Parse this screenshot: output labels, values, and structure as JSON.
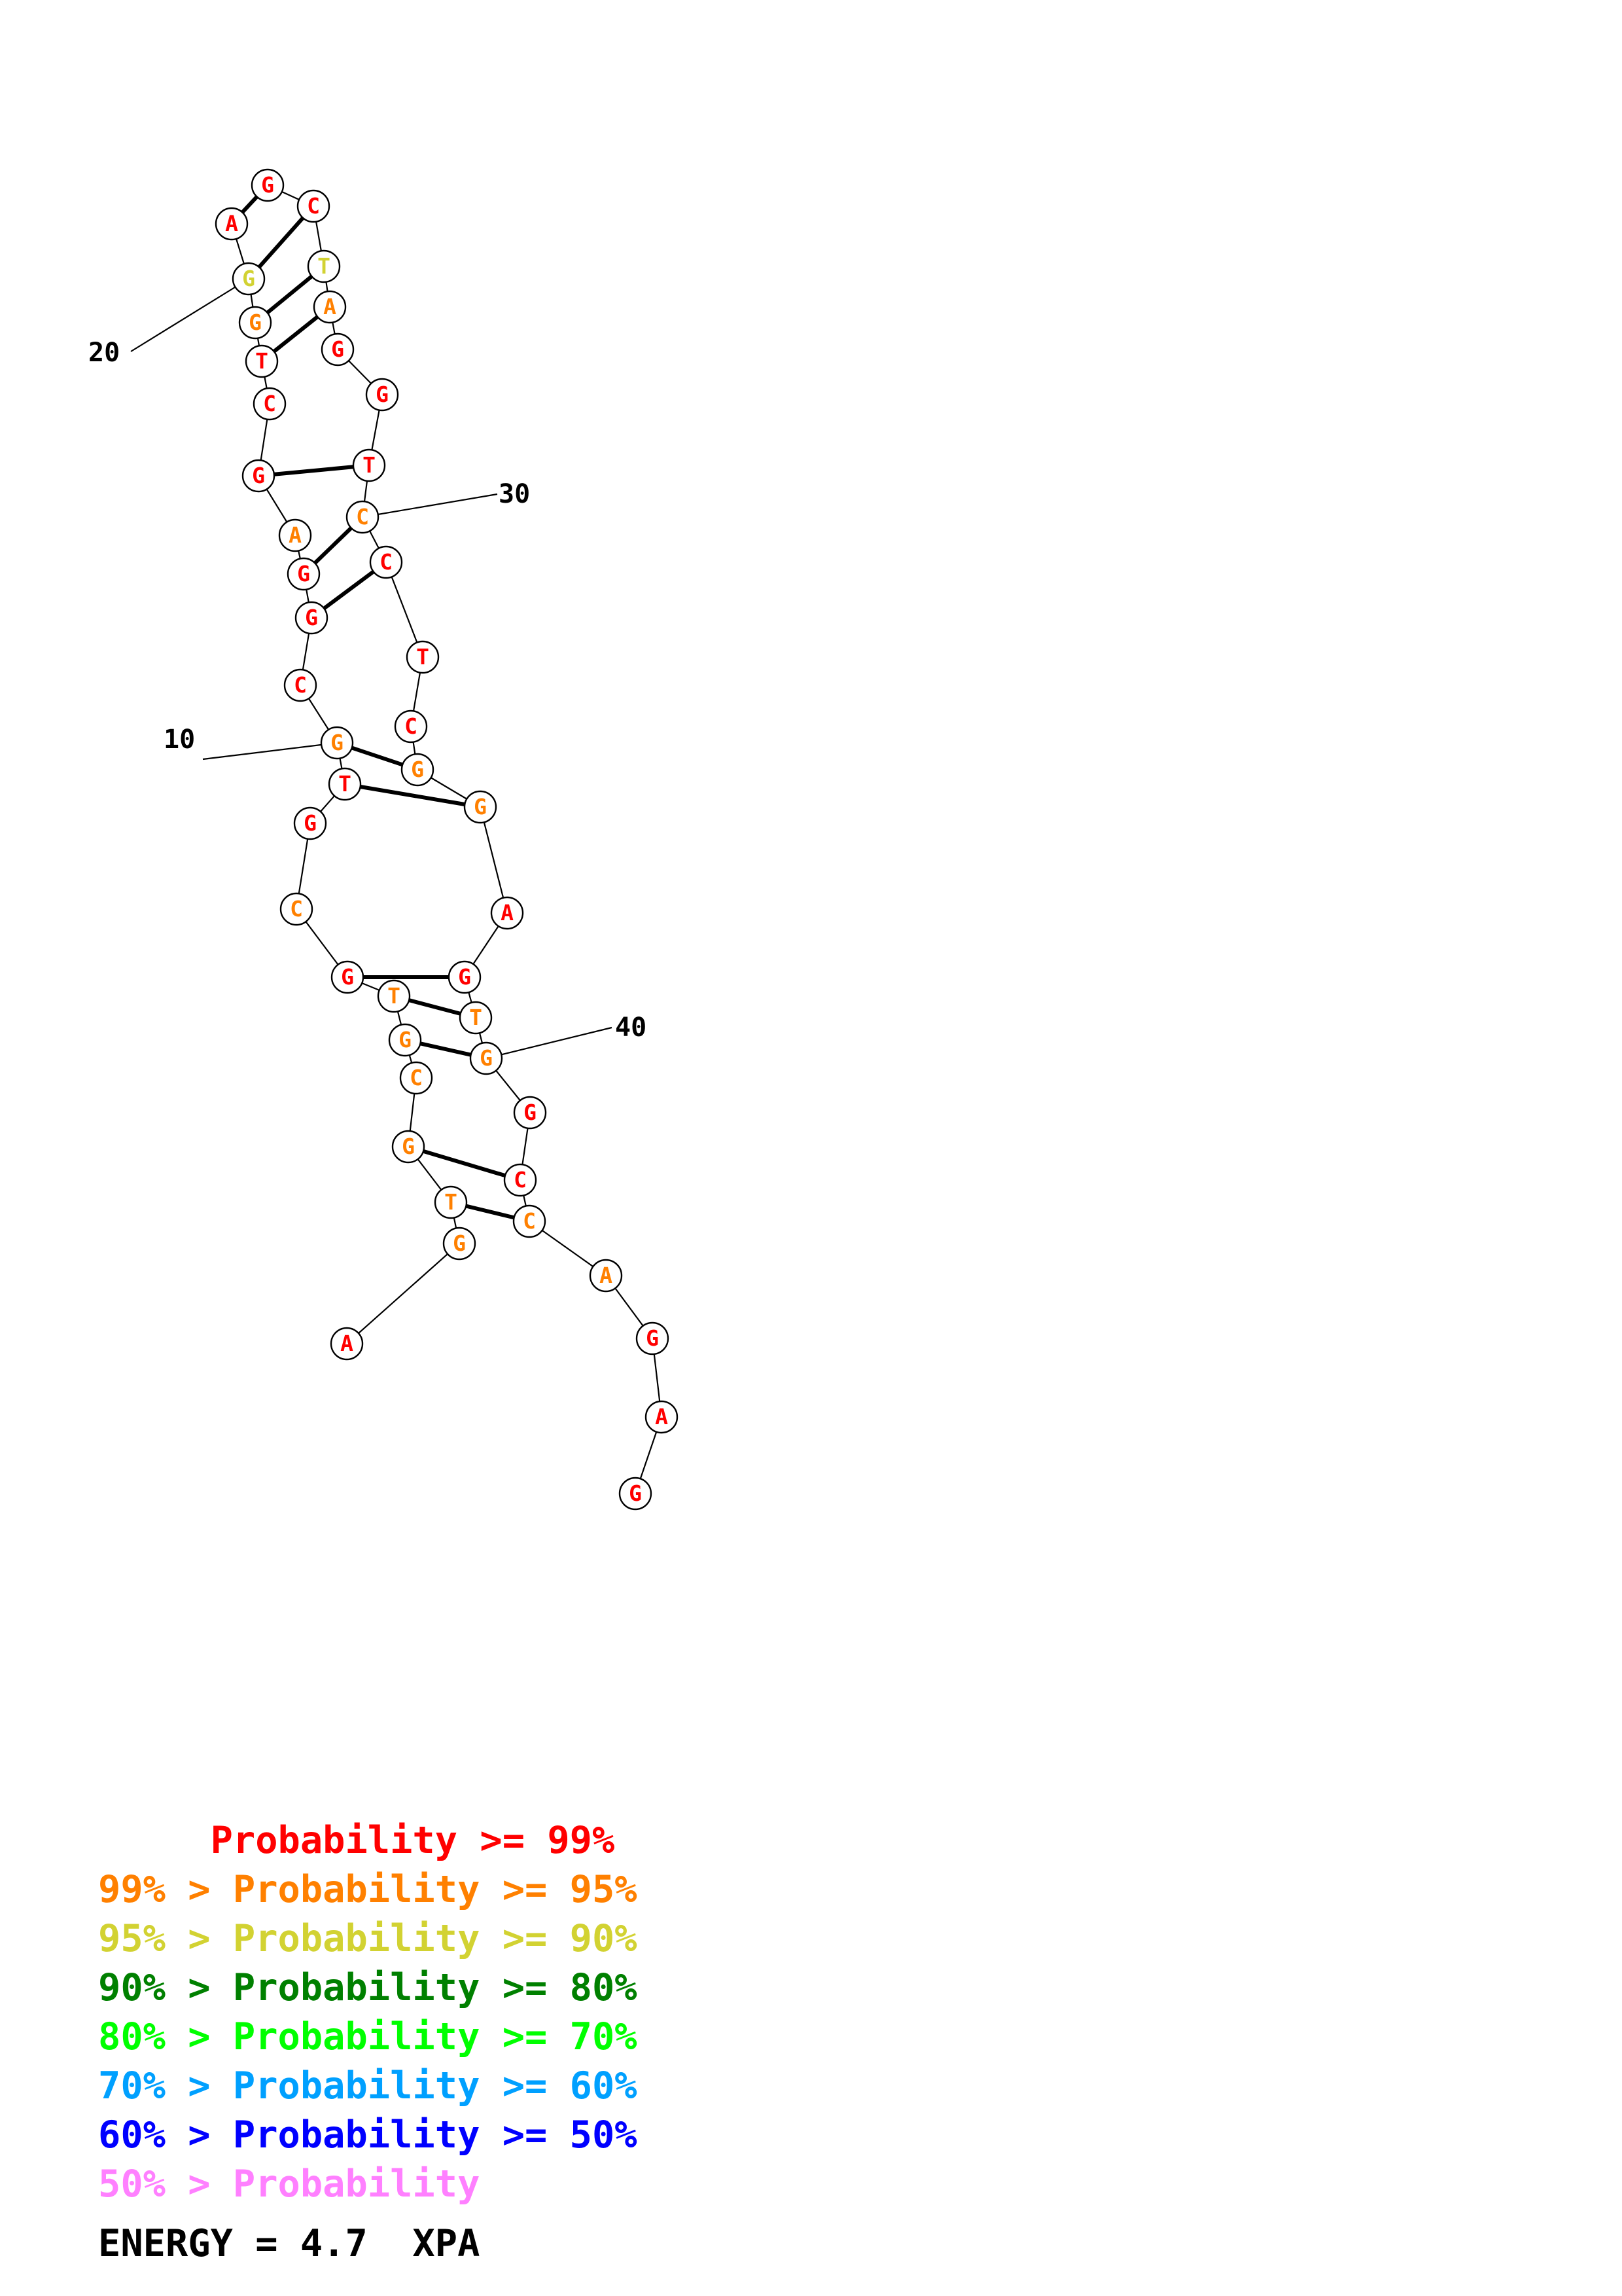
{
  "structure": {
    "sequence": [
      "A",
      "G",
      "T",
      "G",
      "C",
      "G",
      "T",
      "G",
      "C",
      "G",
      "T",
      "G",
      "C",
      "G",
      "G",
      "A",
      "G",
      "C",
      "T",
      "G",
      "G",
      "A",
      "G",
      "C",
      "T",
      "A",
      "G",
      "G",
      "T",
      "C",
      "C",
      "T",
      "C",
      "G",
      "G",
      "A",
      "G",
      "T",
      "G",
      "G",
      "C",
      "C",
      "A",
      "G",
      "A",
      "G"
    ],
    "probability_class": [
      0,
      1,
      1,
      1,
      1,
      1,
      1,
      0,
      1,
      0,
      0,
      1,
      0,
      0,
      0,
      1,
      0,
      0,
      0,
      1,
      2,
      0,
      0,
      0,
      2,
      1,
      0,
      0,
      0,
      1,
      0,
      0,
      0,
      1,
      1,
      0,
      0,
      1,
      1,
      0,
      0,
      1,
      1,
      0,
      0,
      0
    ],
    "pairs": [
      [
        2,
        41
      ],
      [
        3,
        40
      ],
      [
        5,
        38
      ],
      [
        6,
        37
      ],
      [
        7,
        36
      ],
      [
        10,
        34
      ],
      [
        11,
        33
      ],
      [
        13,
        30
      ],
      [
        14,
        29
      ],
      [
        16,
        28
      ],
      [
        18,
        25
      ],
      [
        19,
        24
      ],
      [
        20,
        23
      ],
      [
        21,
        22
      ]
    ],
    "tick_labels": [
      "10",
      "20",
      "30",
      "40"
    ]
  },
  "colors": {
    "p99": "#ff0000",
    "p95": "#ff8000",
    "p90": "#d2d232",
    "p80": "#008000",
    "p70": "#00ff00",
    "p60": "#00a0ff",
    "p50": "#0000ff",
    "plow": "#ff80ff"
  },
  "legend": [
    {
      "text": "     Probability >= 99%",
      "color": "#ff0000"
    },
    {
      "text": "99% > Probability >= 95%",
      "color": "#ff8000"
    },
    {
      "text": "95% > Probability >= 90%",
      "color": "#d2d232"
    },
    {
      "text": "90% > Probability >= 80%",
      "color": "#008000"
    },
    {
      "text": "80% > Probability >= 70%",
      "color": "#00ff00"
    },
    {
      "text": "70% > Probability >= 60%",
      "color": "#00a0ff"
    },
    {
      "text": "60% > Probability >= 50%",
      "color": "#0000ff"
    },
    {
      "text": "50% > Probability",
      "color": "#ff80ff"
    }
  ],
  "energy_text": "ENERGY = 4.7  XPA"
}
